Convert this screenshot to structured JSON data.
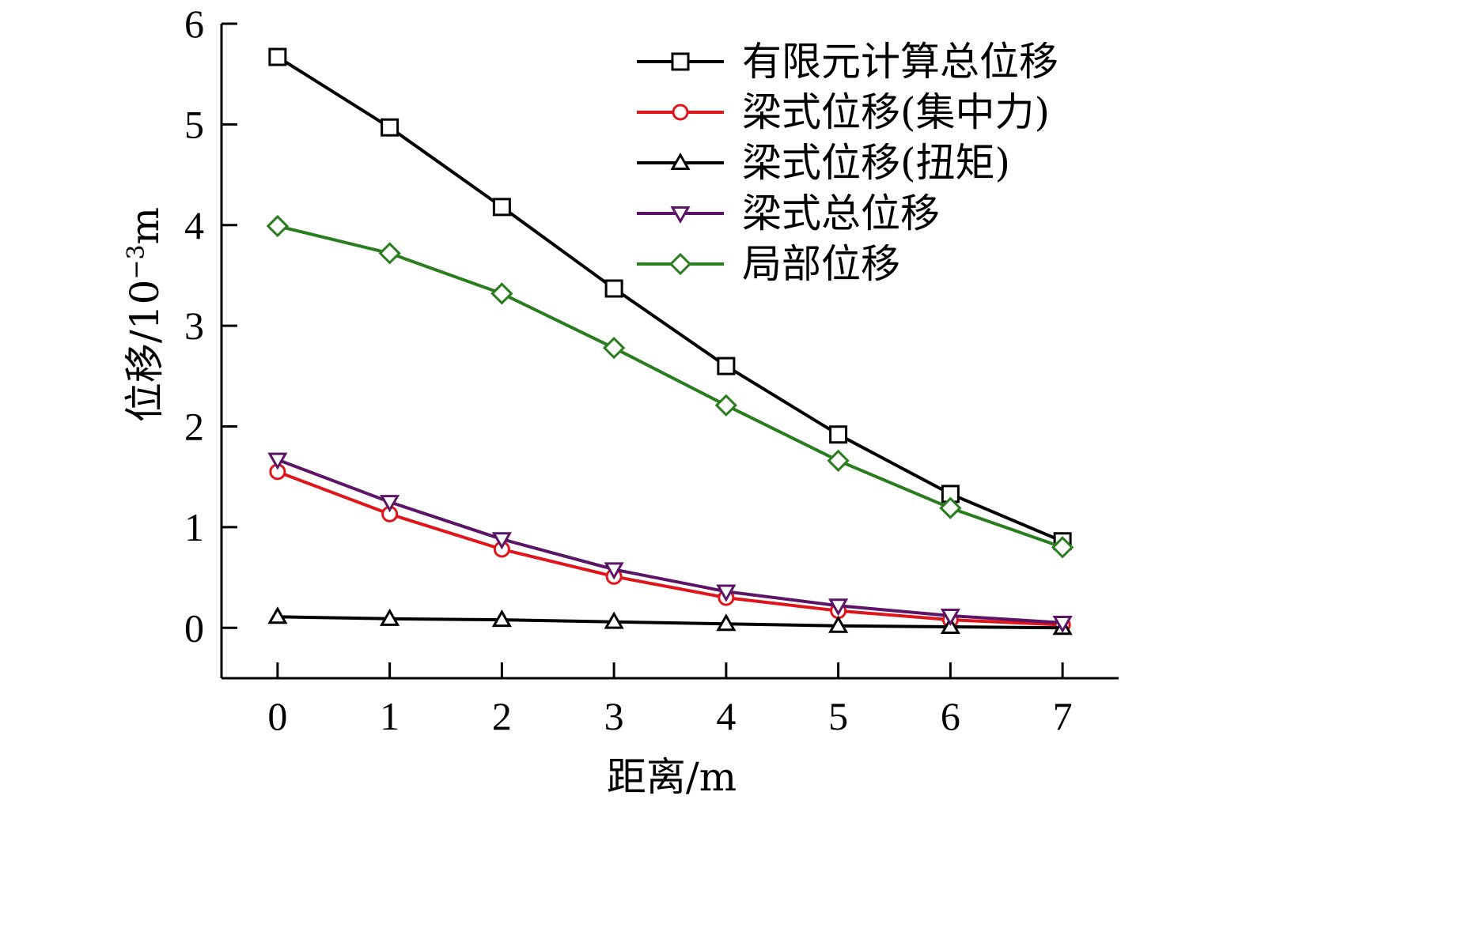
{
  "chart_data": {
    "type": "line",
    "xlabel": "距离/m",
    "ylabel_main": "位移/10",
    "ylabel_exp": "−3",
    "ylabel_unit": "m",
    "xlim": [
      -0.5,
      7.5
    ],
    "ylim": [
      -0.5,
      6
    ],
    "x_ticks": [
      0,
      1,
      2,
      3,
      4,
      5,
      6,
      7
    ],
    "y_ticks": [
      0,
      1,
      2,
      3,
      4,
      5,
      6
    ],
    "grid": false,
    "legend_position": "top-right",
    "x": [
      0,
      1,
      2,
      3,
      4,
      5,
      6,
      7
    ],
    "series": [
      {
        "name": "有限元计算总位移",
        "marker": "square",
        "color": "#000000",
        "values": [
          5.67,
          4.97,
          4.18,
          3.37,
          2.6,
          1.92,
          1.33,
          0.86
        ]
      },
      {
        "name": "梁式位移(集中力)",
        "marker": "circle",
        "color": "#e0151b",
        "values": [
          1.55,
          1.13,
          0.78,
          0.51,
          0.3,
          0.17,
          0.08,
          0.03
        ]
      },
      {
        "name": "梁式位移(扭矩)",
        "marker": "triangle-up",
        "color": "#000000",
        "values": [
          0.11,
          0.09,
          0.08,
          0.06,
          0.04,
          0.02,
          0.01,
          0.0
        ]
      },
      {
        "name": "梁式总位移",
        "marker": "triangle-down",
        "color": "#5c1466",
        "values": [
          1.67,
          1.25,
          0.88,
          0.58,
          0.36,
          0.22,
          0.12,
          0.05
        ]
      },
      {
        "name": "局部位移",
        "marker": "diamond",
        "color": "#2a7d1e",
        "values": [
          3.99,
          3.72,
          3.32,
          2.78,
          2.21,
          1.66,
          1.19,
          0.8
        ]
      }
    ]
  }
}
